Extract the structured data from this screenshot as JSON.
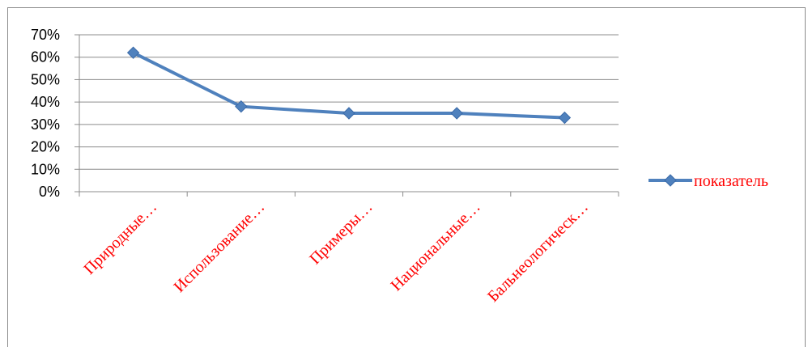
{
  "chart_data": {
    "type": "line",
    "categories": [
      "Природные…",
      "Использование…",
      "Примеры…",
      "Национальные…",
      "Бальнеологическ…"
    ],
    "series": [
      {
        "name": "показатель",
        "values": [
          0.62,
          0.38,
          0.35,
          0.35,
          0.33
        ],
        "color": "#4f81bd"
      }
    ],
    "yticks": [
      "0%",
      "10%",
      "20%",
      "30%",
      "40%",
      "50%",
      "60%",
      "70%"
    ],
    "ylim": [
      0,
      0.7
    ],
    "ytick_step": 0.1,
    "grid": true,
    "legend_position": "right",
    "category_label_color": "#ff0000",
    "legend_label_color": "#ff0000"
  }
}
